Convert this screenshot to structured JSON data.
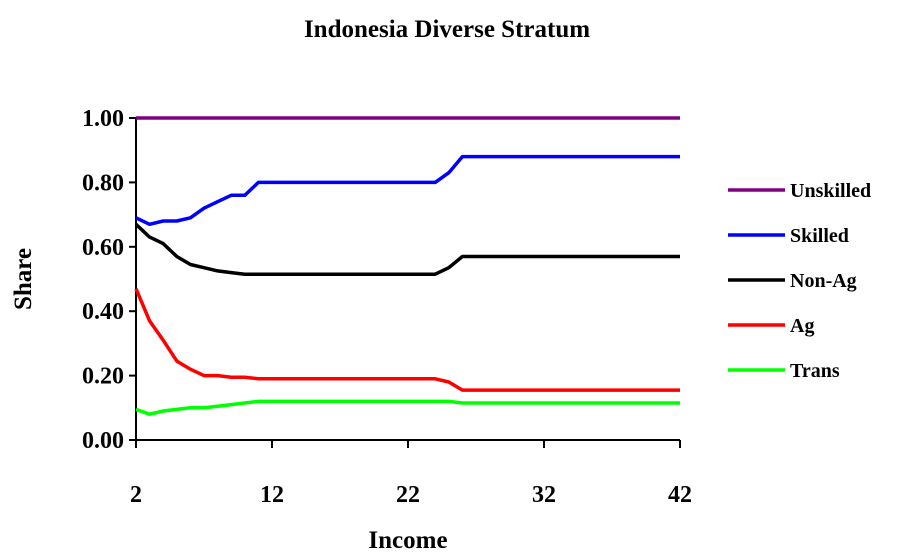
{
  "chart_data": {
    "type": "line",
    "title": "Indonesia Diverse Stratum",
    "xlabel": "Income",
    "ylabel": "Share",
    "xlim": [
      2,
      42
    ],
    "ylim": [
      0,
      1
    ],
    "x_ticks": [
      "2",
      "12",
      "22",
      "32",
      "42"
    ],
    "y_ticks": [
      "0.00",
      "0.20",
      "0.40",
      "0.60",
      "0.80",
      "1.00"
    ],
    "grid": false,
    "legend_position": "right",
    "x": [
      2,
      3,
      4,
      5,
      6,
      7,
      8,
      9,
      10,
      11,
      12,
      13,
      14,
      15,
      16,
      17,
      18,
      19,
      20,
      21,
      22,
      23,
      24,
      25,
      26,
      27,
      28,
      29,
      30,
      31,
      32,
      33,
      34,
      35,
      36,
      37,
      38,
      39,
      40,
      41,
      42
    ],
    "series": [
      {
        "name": "Unskilled",
        "color": "#800080",
        "values": [
          1.0,
          1.0,
          1.0,
          1.0,
          1.0,
          1.0,
          1.0,
          1.0,
          1.0,
          1.0,
          1.0,
          1.0,
          1.0,
          1.0,
          1.0,
          1.0,
          1.0,
          1.0,
          1.0,
          1.0,
          1.0,
          1.0,
          1.0,
          1.0,
          1.0,
          1.0,
          1.0,
          1.0,
          1.0,
          1.0,
          1.0,
          1.0,
          1.0,
          1.0,
          1.0,
          1.0,
          1.0,
          1.0,
          1.0,
          1.0,
          1.0
        ]
      },
      {
        "name": "Skilled",
        "color": "#0000ff",
        "values": [
          0.69,
          0.67,
          0.68,
          0.68,
          0.69,
          0.72,
          0.74,
          0.76,
          0.76,
          0.8,
          0.8,
          0.8,
          0.8,
          0.8,
          0.8,
          0.8,
          0.8,
          0.8,
          0.8,
          0.8,
          0.8,
          0.8,
          0.8,
          0.83,
          0.88,
          0.88,
          0.88,
          0.88,
          0.88,
          0.88,
          0.88,
          0.88,
          0.88,
          0.88,
          0.88,
          0.88,
          0.88,
          0.88,
          0.88,
          0.88,
          0.88
        ]
      },
      {
        "name": "Non-Ag",
        "color": "#000000",
        "values": [
          0.67,
          0.63,
          0.61,
          0.57,
          0.545,
          0.535,
          0.525,
          0.52,
          0.515,
          0.515,
          0.515,
          0.515,
          0.515,
          0.515,
          0.515,
          0.515,
          0.515,
          0.515,
          0.515,
          0.515,
          0.515,
          0.515,
          0.515,
          0.535,
          0.57,
          0.57,
          0.57,
          0.57,
          0.57,
          0.57,
          0.57,
          0.57,
          0.57,
          0.57,
          0.57,
          0.57,
          0.57,
          0.57,
          0.57,
          0.57,
          0.57
        ]
      },
      {
        "name": "Ag",
        "color": "#ff0000",
        "values": [
          0.47,
          0.37,
          0.31,
          0.245,
          0.22,
          0.2,
          0.2,
          0.195,
          0.195,
          0.19,
          0.19,
          0.19,
          0.19,
          0.19,
          0.19,
          0.19,
          0.19,
          0.19,
          0.19,
          0.19,
          0.19,
          0.19,
          0.19,
          0.18,
          0.155,
          0.155,
          0.155,
          0.155,
          0.155,
          0.155,
          0.155,
          0.155,
          0.155,
          0.155,
          0.155,
          0.155,
          0.155,
          0.155,
          0.155,
          0.155,
          0.155
        ]
      },
      {
        "name": "Trans",
        "color": "#00ff00",
        "values": [
          0.095,
          0.08,
          0.09,
          0.095,
          0.1,
          0.1,
          0.105,
          0.11,
          0.115,
          0.12,
          0.12,
          0.12,
          0.12,
          0.12,
          0.12,
          0.12,
          0.12,
          0.12,
          0.12,
          0.12,
          0.12,
          0.12,
          0.12,
          0.12,
          0.115,
          0.115,
          0.115,
          0.115,
          0.115,
          0.115,
          0.115,
          0.115,
          0.115,
          0.115,
          0.115,
          0.115,
          0.115,
          0.115,
          0.115,
          0.115,
          0.115
        ]
      }
    ]
  }
}
